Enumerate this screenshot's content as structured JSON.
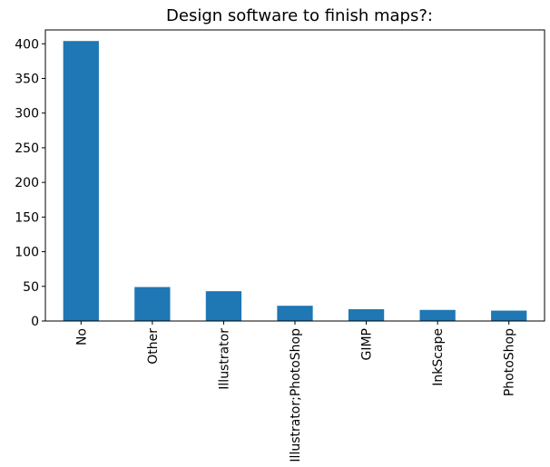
{
  "chart_data": {
    "type": "bar",
    "title": "Design software to finish maps?:",
    "xlabel": "",
    "ylabel": "",
    "categories": [
      "No",
      "Other",
      "Illustrator",
      "Illustrator;PhotoShop",
      "GIMP",
      "InkScape",
      "PhotoShop"
    ],
    "values": [
      404,
      49,
      43,
      22,
      17,
      16,
      15
    ],
    "ylim": [
      0,
      420
    ],
    "yticks": [
      0,
      50,
      100,
      150,
      200,
      250,
      300,
      350,
      400
    ],
    "grid": false,
    "bar_color": "#1f77b4"
  }
}
